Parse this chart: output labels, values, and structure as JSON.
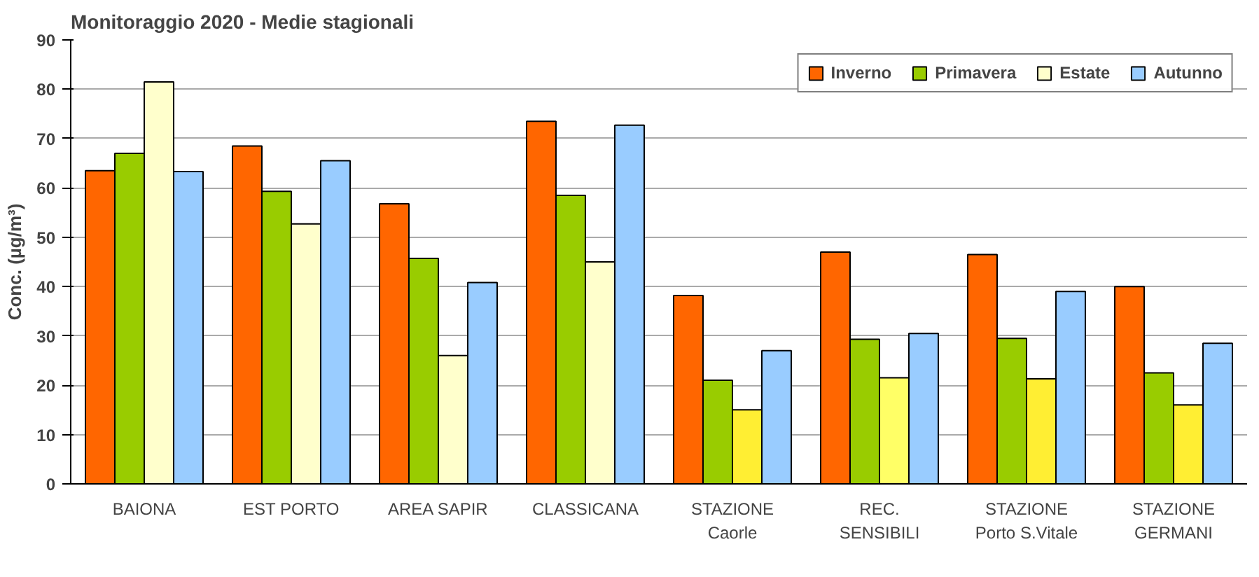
{
  "chart_data": {
    "type": "bar",
    "title": "Monitoraggio 2020 - Medie stagionali",
    "ylabel": "Conc. (µg/m³)",
    "categories": [
      "BAIONA",
      "EST PORTO",
      "AREA SAPIR",
      "CLASSICANA",
      "STAZIONE\nCaorle",
      "REC.\nSENSIBILI",
      "STAZIONE\nPorto S.Vitale",
      "STAZIONE\nGERMANI"
    ],
    "series": [
      {
        "name": "Inverno",
        "color": "#ff6600",
        "values": [
          63.5,
          68.5,
          56.8,
          73.5,
          38.2,
          47,
          46.5,
          40
        ]
      },
      {
        "name": "Primavera",
        "color": "#99cc00",
        "values": [
          67,
          59.3,
          45.7,
          58.5,
          21,
          29.3,
          29.5,
          22.5
        ]
      },
      {
        "name": "Estate",
        "color": "#ffffcc",
        "colors": [
          "#ffffcc",
          "#ffffcc",
          "#ffffcc",
          "#ffffcc",
          "#ffee33",
          "#ffff66",
          "#ffee33",
          "#ffee33"
        ],
        "values": [
          81.5,
          52.7,
          26,
          45,
          15,
          21.5,
          21.3,
          16
        ]
      },
      {
        "name": "Autunno",
        "color": "#99ccff",
        "values": [
          63.3,
          65.5,
          40.8,
          72.7,
          27,
          30.5,
          39,
          28.5
        ]
      }
    ],
    "ylim": [
      0,
      90
    ],
    "yticks": [
      0,
      10,
      20,
      30,
      40,
      50,
      60,
      70,
      80,
      90
    ],
    "grid": "y",
    "legend": "top right"
  }
}
